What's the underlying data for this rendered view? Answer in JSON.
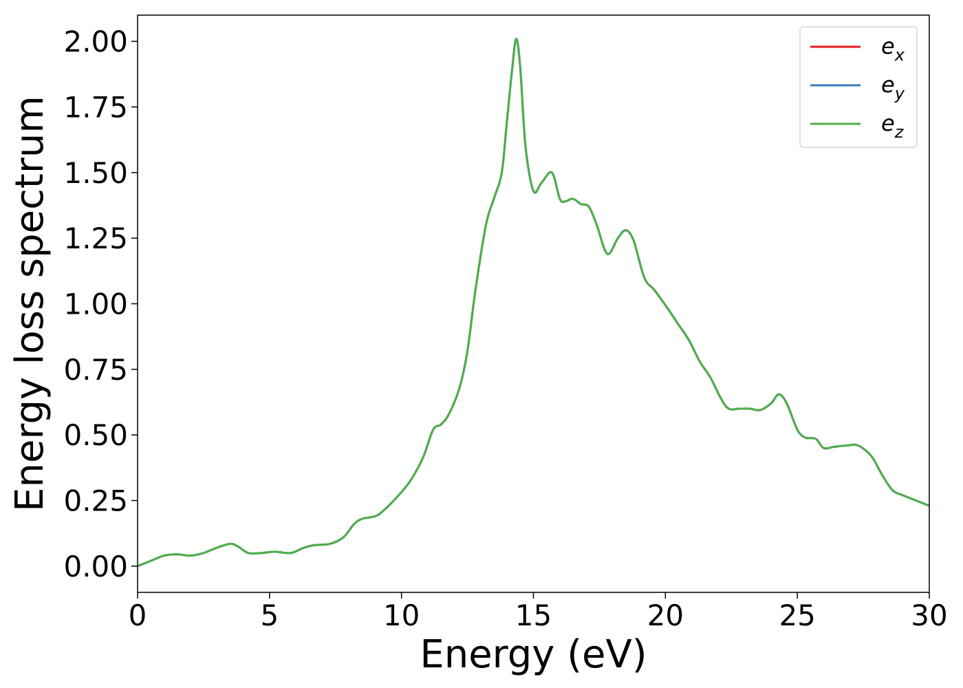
{
  "chart_data": {
    "type": "line",
    "title": "",
    "xlabel": "Energy (eV)",
    "ylabel": "Energy loss spectrum",
    "xlim": [
      0,
      30
    ],
    "ylim": [
      -0.1,
      2.1
    ],
    "xticks": [
      0,
      5,
      10,
      15,
      20,
      25,
      30
    ],
    "xtick_labels": [
      "0",
      "5",
      "10",
      "15",
      "20",
      "25",
      "30"
    ],
    "yticks": [
      0.0,
      0.25,
      0.5,
      0.75,
      1.0,
      1.25,
      1.5,
      1.75,
      2.0
    ],
    "ytick_labels": [
      "0.00",
      "0.25",
      "0.50",
      "0.75",
      "1.00",
      "1.25",
      "1.50",
      "1.75",
      "2.00"
    ],
    "grid": false,
    "legend_position": "top-right",
    "x": [
      0,
      0.5,
      1.0,
      1.5,
      2.0,
      2.5,
      3.0,
      3.5,
      3.8,
      4.2,
      4.7,
      5.2,
      5.8,
      6.3,
      6.7,
      7.3,
      7.8,
      8.2,
      8.5,
      9.0,
      9.3,
      9.8,
      10.3,
      10.8,
      11.2,
      11.5,
      11.8,
      12.2,
      12.5,
      12.8,
      13.2,
      13.5,
      13.8,
      14.0,
      14.2,
      14.35,
      14.5,
      14.7,
      15.0,
      15.3,
      15.7,
      16.0,
      16.2,
      16.5,
      16.8,
      17.1,
      17.4,
      17.8,
      18.2,
      18.5,
      18.8,
      19.2,
      19.6,
      20.1,
      20.5,
      20.9,
      21.3,
      21.7,
      22.1,
      22.4,
      22.8,
      23.2,
      23.6,
      24.0,
      24.3,
      24.6,
      25.0,
      25.3,
      25.7,
      26.0,
      26.4,
      26.9,
      27.3,
      27.8,
      28.2,
      28.6,
      29.0,
      29.5,
      30.0
    ],
    "series": [
      {
        "name": "e_x",
        "label_main": "e",
        "label_sub": "x",
        "color": "#e41a1c",
        "values": [
          0.0,
          0.02,
          0.04,
          0.045,
          0.04,
          0.05,
          0.07,
          0.085,
          0.075,
          0.05,
          0.05,
          0.055,
          0.05,
          0.07,
          0.08,
          0.085,
          0.11,
          0.16,
          0.18,
          0.19,
          0.21,
          0.26,
          0.32,
          0.41,
          0.52,
          0.54,
          0.58,
          0.68,
          0.82,
          1.05,
          1.3,
          1.4,
          1.5,
          1.7,
          1.9,
          2.01,
          1.9,
          1.6,
          1.43,
          1.46,
          1.5,
          1.4,
          1.39,
          1.4,
          1.38,
          1.37,
          1.3,
          1.19,
          1.25,
          1.28,
          1.24,
          1.1,
          1.05,
          0.98,
          0.92,
          0.86,
          0.78,
          0.72,
          0.64,
          0.6,
          0.6,
          0.6,
          0.595,
          0.62,
          0.655,
          0.62,
          0.52,
          0.49,
          0.485,
          0.45,
          0.455,
          0.46,
          0.46,
          0.42,
          0.35,
          0.29,
          0.27,
          0.25,
          0.23
        ]
      },
      {
        "name": "e_y",
        "label_main": "e",
        "label_sub": "y",
        "color": "#377eb8",
        "values": [
          0.0,
          0.02,
          0.04,
          0.045,
          0.04,
          0.05,
          0.07,
          0.085,
          0.075,
          0.05,
          0.05,
          0.055,
          0.05,
          0.07,
          0.08,
          0.085,
          0.11,
          0.16,
          0.18,
          0.19,
          0.21,
          0.26,
          0.32,
          0.41,
          0.52,
          0.54,
          0.58,
          0.68,
          0.82,
          1.05,
          1.3,
          1.4,
          1.5,
          1.7,
          1.9,
          2.01,
          1.9,
          1.6,
          1.43,
          1.46,
          1.5,
          1.4,
          1.39,
          1.4,
          1.38,
          1.37,
          1.3,
          1.19,
          1.25,
          1.28,
          1.24,
          1.1,
          1.05,
          0.98,
          0.92,
          0.86,
          0.78,
          0.72,
          0.64,
          0.6,
          0.6,
          0.6,
          0.595,
          0.62,
          0.655,
          0.62,
          0.52,
          0.49,
          0.485,
          0.45,
          0.455,
          0.46,
          0.46,
          0.42,
          0.35,
          0.29,
          0.27,
          0.25,
          0.23
        ]
      },
      {
        "name": "e_z",
        "label_main": "e",
        "label_sub": "z",
        "color": "#4daf4a",
        "values": [
          0.0,
          0.02,
          0.04,
          0.045,
          0.04,
          0.05,
          0.07,
          0.085,
          0.075,
          0.05,
          0.05,
          0.055,
          0.05,
          0.07,
          0.08,
          0.085,
          0.11,
          0.16,
          0.18,
          0.19,
          0.21,
          0.26,
          0.32,
          0.41,
          0.52,
          0.54,
          0.58,
          0.68,
          0.82,
          1.05,
          1.3,
          1.4,
          1.5,
          1.7,
          1.9,
          2.01,
          1.9,
          1.6,
          1.43,
          1.46,
          1.5,
          1.4,
          1.39,
          1.4,
          1.38,
          1.37,
          1.3,
          1.19,
          1.25,
          1.28,
          1.24,
          1.1,
          1.05,
          0.98,
          0.92,
          0.86,
          0.78,
          0.72,
          0.64,
          0.6,
          0.6,
          0.6,
          0.595,
          0.62,
          0.655,
          0.62,
          0.52,
          0.49,
          0.485,
          0.45,
          0.455,
          0.46,
          0.46,
          0.42,
          0.35,
          0.29,
          0.27,
          0.25,
          0.23
        ]
      }
    ]
  }
}
